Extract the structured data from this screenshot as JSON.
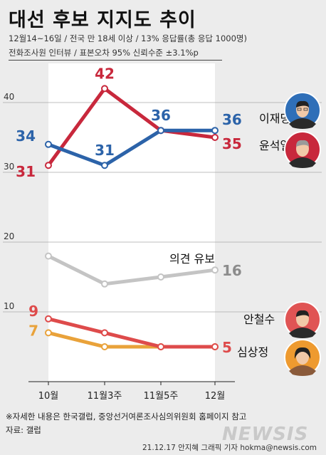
{
  "title": "대선 후보 지지도 추이",
  "subtitle_line1": "12월14~16일 / 전국 만 18세 이상 / 13% 응답률(총 응답 1000명)",
  "subtitle_line2": "전화조사원 인터뷰 / 표본오차 95% 신뢰수준 ±3.1%p",
  "footnote": "※자세한 내용은 한국갤럽, 중앙선거여론조사심의위원회 홈페이지 참고",
  "source": "자료: 갤럽",
  "credit": "21.12.17 안지혜 그래픽 기자 hokma@newsis.com",
  "logo": "NEWSIS",
  "colors": {
    "이재명": "#2c63a9",
    "윤석열": "#c8283c",
    "의견 유보": "#c4c4c4",
    "안철수": "#de4b4b",
    "심상정": "#e9a23a"
  },
  "chart_data": {
    "type": "line",
    "categories": [
      "10월",
      "11월3주",
      "11월5주",
      "12월"
    ],
    "ylim": [
      0,
      45
    ],
    "yticks": [
      10,
      20,
      30,
      40
    ],
    "grid": true,
    "series": [
      {
        "name": "이재명",
        "values": [
          34,
          31,
          36,
          36
        ],
        "labels": [
          "34",
          "31",
          "36",
          "36"
        ],
        "avatar": "man-with-glasses",
        "avatar_bg": "#2f6fb8"
      },
      {
        "name": "윤석열",
        "values": [
          31,
          42,
          36,
          35
        ],
        "labels": [
          "31",
          "42",
          "",
          "35"
        ],
        "avatar": "man-gray-hair",
        "avatar_bg": "#c8283c"
      },
      {
        "name": "의견 유보",
        "values": [
          18,
          14,
          15,
          16
        ],
        "labels": [
          "",
          "",
          "",
          "16"
        ]
      },
      {
        "name": "안철수",
        "values": [
          9,
          7,
          5,
          5
        ],
        "labels": [
          "9",
          "",
          "",
          "5"
        ],
        "avatar": "man-dark-hair",
        "avatar_bg": "#e05454"
      },
      {
        "name": "심상정",
        "values": [
          7,
          5,
          5,
          5
        ],
        "labels": [
          "7",
          "",
          "",
          ""
        ],
        "avatar": "woman-short-hair",
        "avatar_bg": "#ee9a2f"
      }
    ]
  }
}
